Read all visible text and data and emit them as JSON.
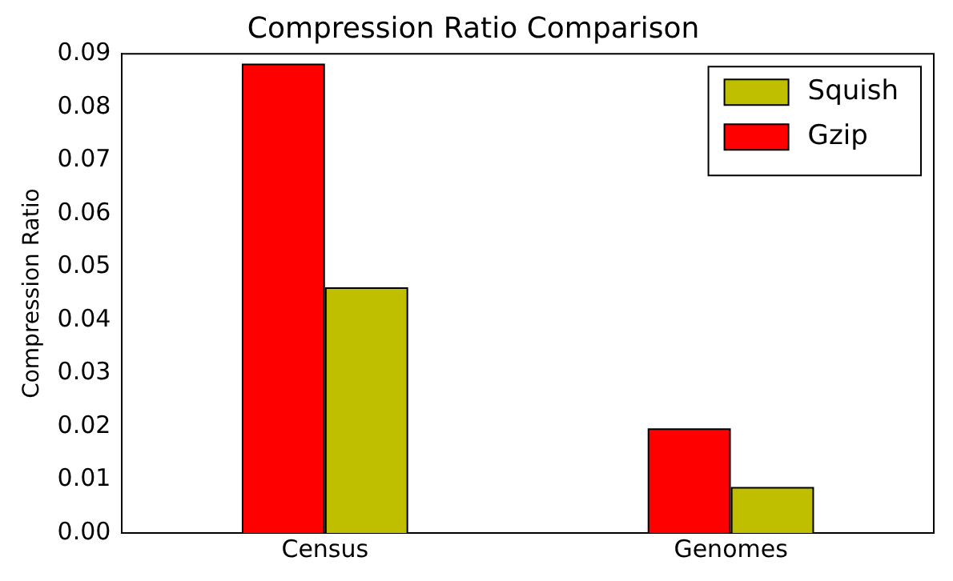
{
  "chart_data": {
    "type": "bar",
    "title": "Compression Ratio Comparison",
    "ylabel": "Compression Ratio",
    "categories": [
      "Census",
      "Genomes"
    ],
    "series": [
      {
        "name": "Gzip",
        "color": "#ff0000",
        "values": [
          0.088,
          0.0195
        ]
      },
      {
        "name": "Squish",
        "color": "#bfbf00",
        "values": [
          0.046,
          0.0085
        ]
      }
    ],
    "ylim": [
      0,
      0.09
    ],
    "yticks": [
      {
        "value": 0,
        "label": "0.00"
      },
      0.01,
      0.02,
      0.03,
      0.04,
      0.05,
      0.06,
      0.07,
      0.08,
      0.09
    ],
    "grid": false,
    "legend": "top right"
  }
}
